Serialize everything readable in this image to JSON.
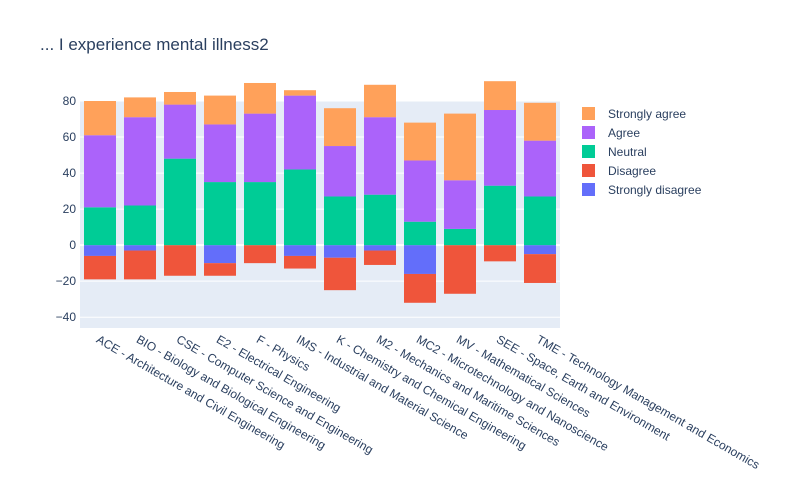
{
  "chart_data": {
    "type": "bar",
    "barmode": "relative",
    "title": "... I experience mental illness2",
    "xlabel": "",
    "ylabel": "",
    "ylim": [
      -46,
      80
    ],
    "yticks": [
      80,
      60,
      40,
      20,
      0,
      -20,
      -40
    ],
    "grid": true,
    "legend_position": "top-right",
    "categories": [
      "ACE - Architecture and Civil Engineering",
      "BIO - Biology and Biological Engineering",
      "CSE - Computer Science and Engineering",
      "E2 - Electrical Engineering",
      "F - Physics",
      "IMS - Industrial and Material Science",
      "K - Chemistry and Chemical Engineering",
      "M2 - Mechanics and Maritime Sciences",
      "MC2 - Microtechnology and Nanoscience",
      "MV - Mathematical Sciences",
      "SEE - Space, Earth and Environment",
      "TME - Technology Management and Economics"
    ],
    "series": [
      {
        "name": "Strongly disagree",
        "color": "#636efa",
        "values": [
          -6,
          -3,
          0,
          -10,
          0,
          -6,
          -7,
          -3,
          -16,
          0,
          0,
          -5
        ]
      },
      {
        "name": "Disagree",
        "color": "#ef553b",
        "values": [
          -13,
          -16,
          -17,
          -7,
          -10,
          -7,
          -18,
          -8,
          -16,
          -27,
          -9,
          -16
        ]
      },
      {
        "name": "Neutral",
        "color": "#00cc96",
        "values": [
          21,
          22,
          48,
          35,
          35,
          42,
          27,
          28,
          13,
          9,
          33,
          27
        ]
      },
      {
        "name": "Agree",
        "color": "#ab63fa",
        "values": [
          40,
          49,
          30,
          32,
          38,
          41,
          28,
          43,
          34,
          27,
          42,
          31
        ]
      },
      {
        "name": "Strongly agree",
        "color": "#ffa15a",
        "values": [
          19,
          11,
          7,
          16,
          17,
          3,
          21,
          18,
          21,
          37,
          16,
          21
        ]
      }
    ],
    "legend_order": [
      "Strongly agree",
      "Agree",
      "Neutral",
      "Disagree",
      "Strongly disagree"
    ]
  }
}
